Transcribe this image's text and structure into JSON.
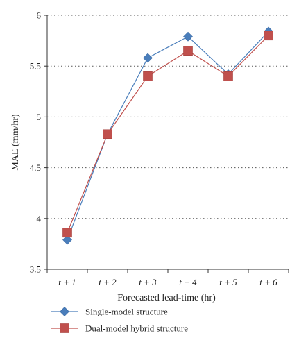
{
  "chart_data": {
    "type": "line",
    "categories": [
      "t + 1",
      "t + 2",
      "t + 3",
      "t + 4",
      "t + 5",
      "t + 6"
    ],
    "series": [
      {
        "name": "Single-model structure",
        "color": "#4a7ebb",
        "marker": "diamond",
        "values": [
          3.79,
          4.83,
          5.58,
          5.79,
          5.42,
          5.84
        ]
      },
      {
        "name": "Dual-model hybrid structure",
        "color": "#c0504d",
        "marker": "square",
        "values": [
          3.86,
          4.83,
          5.4,
          5.65,
          5.4,
          5.8
        ]
      }
    ],
    "xlabel": "Forecasted lead-time (hr)",
    "ylabel": "MAE (mm/hr)",
    "ylim": [
      3.5,
      6
    ],
    "yticks": [
      "3.5",
      "4",
      "4.5",
      "5",
      "5.5",
      "6"
    ],
    "grid": "horizontal dotted",
    "legend_position": "bottom"
  }
}
